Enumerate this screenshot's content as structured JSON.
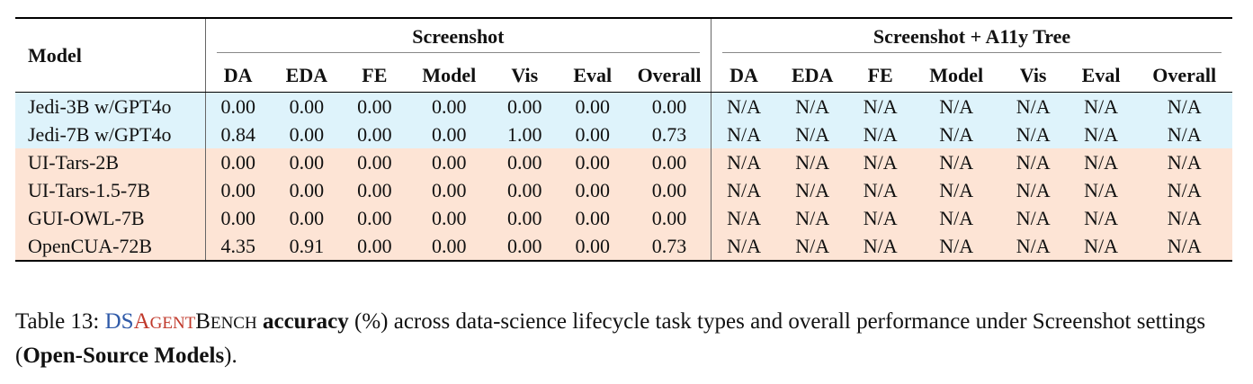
{
  "table": {
    "model_header": "Model",
    "group1": "Screenshot",
    "group2": "Screenshot + A11y Tree",
    "sub_headers": [
      "DA",
      "EDA",
      "FE",
      "Model",
      "Vis",
      "Eval",
      "Overall"
    ],
    "rows": [
      {
        "model": "Jedi-3B w/GPT4o",
        "group": "blue",
        "s": [
          "0.00",
          "0.00",
          "0.00",
          "0.00",
          "0.00",
          "0.00",
          "0.00"
        ],
        "a": [
          "N/A",
          "N/A",
          "N/A",
          "N/A",
          "N/A",
          "N/A",
          "N/A"
        ]
      },
      {
        "model": "Jedi-7B w/GPT4o",
        "group": "blue",
        "s": [
          "0.84",
          "0.00",
          "0.00",
          "0.00",
          "1.00",
          "0.00",
          "0.73"
        ],
        "a": [
          "N/A",
          "N/A",
          "N/A",
          "N/A",
          "N/A",
          "N/A",
          "N/A"
        ]
      },
      {
        "model": "UI-Tars-2B",
        "group": "peach",
        "s": [
          "0.00",
          "0.00",
          "0.00",
          "0.00",
          "0.00",
          "0.00",
          "0.00"
        ],
        "a": [
          "N/A",
          "N/A",
          "N/A",
          "N/A",
          "N/A",
          "N/A",
          "N/A"
        ]
      },
      {
        "model": "UI-Tars-1.5-7B",
        "group": "peach",
        "s": [
          "0.00",
          "0.00",
          "0.00",
          "0.00",
          "0.00",
          "0.00",
          "0.00"
        ],
        "a": [
          "N/A",
          "N/A",
          "N/A",
          "N/A",
          "N/A",
          "N/A",
          "N/A"
        ]
      },
      {
        "model": "GUI-OWL-7B",
        "group": "peach",
        "s": [
          "0.00",
          "0.00",
          "0.00",
          "0.00",
          "0.00",
          "0.00",
          "0.00"
        ],
        "a": [
          "N/A",
          "N/A",
          "N/A",
          "N/A",
          "N/A",
          "N/A",
          "N/A"
        ]
      },
      {
        "model": "OpenCUA-72B",
        "group": "peach",
        "s": [
          "4.35",
          "0.91",
          "0.00",
          "0.00",
          "0.00",
          "0.00",
          "0.73"
        ],
        "a": [
          "N/A",
          "N/A",
          "N/A",
          "N/A",
          "N/A",
          "N/A",
          "N/A"
        ]
      }
    ],
    "row_colors": {
      "blue": "#def3fb",
      "peach": "#fde4d5"
    }
  },
  "caption": {
    "label": "Table 13: ",
    "name_ds": "DS",
    "name_agent_A": "A",
    "name_agent_rest": "GENT",
    "name_bench_B": "B",
    "name_bench_rest": "ENCH",
    "bold1": "accuracy",
    "text1": " (%) across data-science lifecycle task types and overall performance under Screenshot settings (",
    "bold2": "Open-Source Models",
    "text2": ")."
  }
}
